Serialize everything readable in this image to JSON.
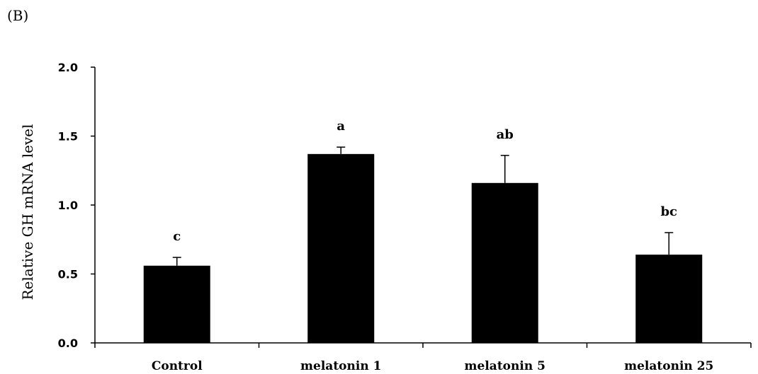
{
  "panel_label": "(B)",
  "chart_data": {
    "type": "bar",
    "title": "",
    "xlabel": "",
    "ylabel": "Relative GH mRNA level",
    "ylim": [
      0,
      2.0
    ],
    "yticks": [
      "0.0",
      "0.5",
      "1.0",
      "1.5",
      "2.0"
    ],
    "ytick_values": [
      0,
      0.5,
      1.0,
      1.5,
      2.0
    ],
    "categories": [
      "Control",
      "melatonin 1",
      "melatonin 5",
      "melatonin 25"
    ],
    "values": [
      0.56,
      1.37,
      1.16,
      0.64
    ],
    "errors": [
      0.06,
      0.05,
      0.2,
      0.16
    ],
    "annotations": [
      "c",
      "a",
      "ab",
      "bc"
    ],
    "bar_color": "#000000",
    "grid": false
  }
}
